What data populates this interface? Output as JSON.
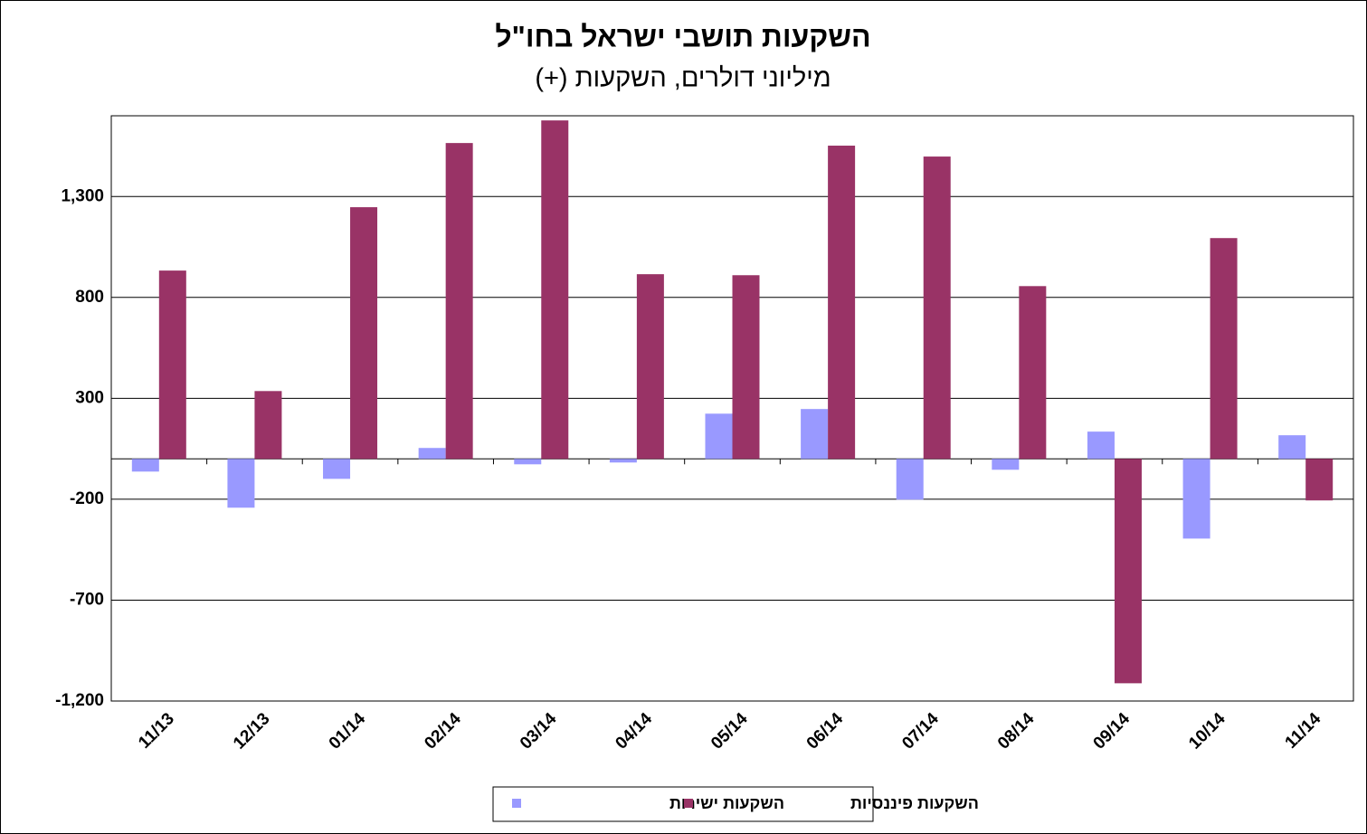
{
  "chart_data": {
    "type": "bar",
    "title": "השקעות תושבי ישראל בחו\"ל",
    "subtitle": "מיליוני דולרים, השקעות (+)",
    "categories": [
      "11/13",
      "12/13",
      "01/14",
      "02/14",
      "03/14",
      "04/14",
      "05/14",
      "06/14",
      "07/14",
      "08/14",
      "09/14",
      "10/14",
      "11/14"
    ],
    "series": [
      {
        "name": "השקעות ישירות",
        "color": "#9999ff",
        "values": [
          -63,
          -242,
          -99,
          54,
          -27,
          -18,
          224,
          247,
          -202,
          -54,
          135,
          -395,
          117
        ]
      },
      {
        "name": "השקעות פיננסיות",
        "color": "#993366",
        "values": [
          933,
          336,
          1247,
          1565,
          1677,
          915,
          910,
          1552,
          1498,
          856,
          -1112,
          1094,
          -206
        ]
      }
    ],
    "ylim": [
      -1200,
      1700
    ],
    "yticks": [
      {
        "value": 1300,
        "label": "1,300"
      },
      800,
      300,
      -200,
      -700,
      {
        "value": -1200,
        "label": "-1,200"
      }
    ],
    "grid": true,
    "legend": "bottom"
  }
}
